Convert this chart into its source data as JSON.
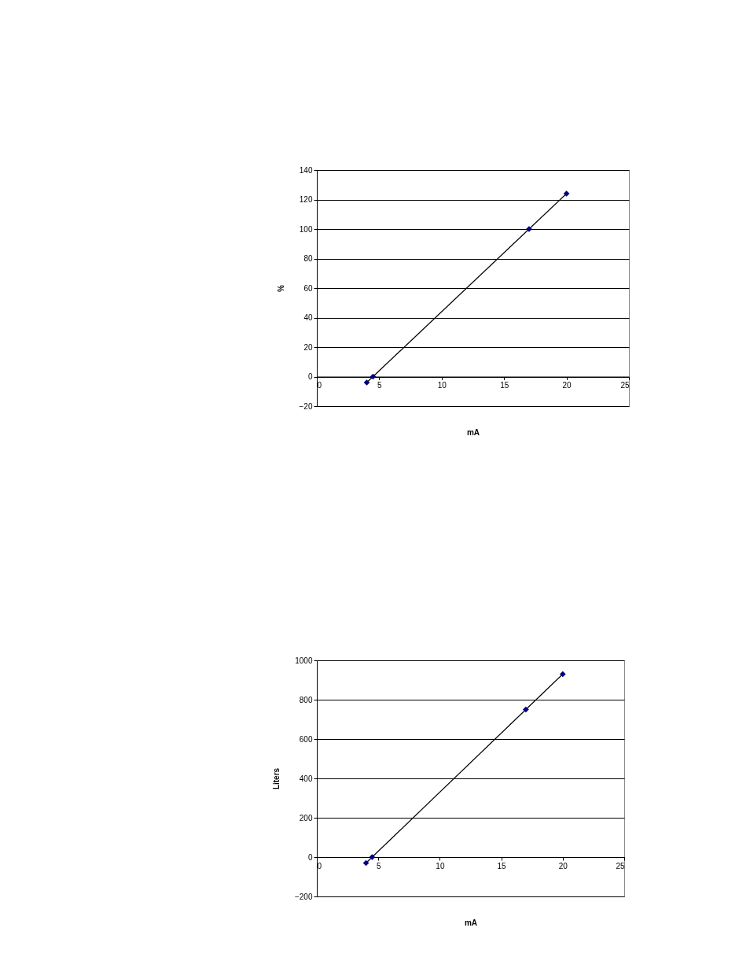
{
  "chart_data": [
    {
      "type": "scatter",
      "xlabel": "mA",
      "ylabel": "%",
      "xlim": [
        0,
        25
      ],
      "xticks": [
        0,
        5,
        10,
        15,
        20,
        25
      ],
      "ylim": [
        -20,
        140
      ],
      "yticks": [
        -20,
        0,
        20,
        40,
        60,
        80,
        100,
        120,
        140
      ],
      "grid": "y",
      "series": [
        {
          "type": "line",
          "color": "#000000",
          "marker": "none",
          "x": [
            4,
            4.5,
            17,
            20
          ],
          "values": [
            -4,
            0,
            100,
            124
          ]
        },
        {
          "color": "#000080",
          "marker": "diamond",
          "x": [
            4,
            4.5,
            17,
            20
          ],
          "values": [
            -4,
            0,
            100,
            124
          ]
        }
      ]
    },
    {
      "type": "scatter",
      "xlabel": "mA",
      "ylabel": "Liters",
      "xlim": [
        0,
        25
      ],
      "xticks": [
        0,
        5,
        10,
        15,
        20,
        25
      ],
      "ylim": [
        -200,
        1000
      ],
      "yticks": [
        -200,
        0,
        200,
        400,
        600,
        800,
        1000
      ],
      "grid": "y",
      "series": [
        {
          "type": "line",
          "color": "#000000",
          "marker": "none",
          "x": [
            4,
            4.5,
            17,
            20
          ],
          "values": [
            -30,
            0,
            750,
            930
          ]
        },
        {
          "color": "#000080",
          "marker": "diamond",
          "x": [
            4,
            4.5,
            17,
            20
          ],
          "values": [
            -30,
            0,
            750,
            930
          ]
        }
      ]
    }
  ]
}
